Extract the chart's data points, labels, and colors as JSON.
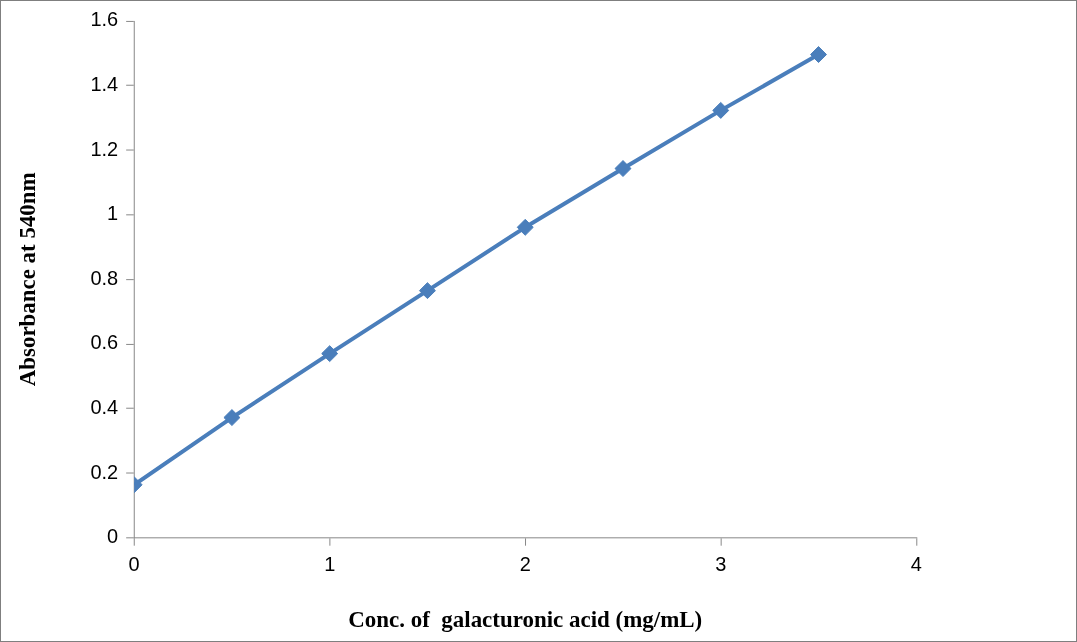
{
  "chart_data": {
    "type": "line",
    "xlabel": "Conc. of  galacturonic acid (mg/mL)",
    "ylabel": "Absorbance at 540nm",
    "x": [
      0,
      0.5,
      1,
      1.5,
      2,
      2.5,
      3,
      3.5
    ],
    "series": [
      {
        "color": "#4a7ebb",
        "values": [
          0.164,
          0.372,
          0.57,
          0.765,
          0.961,
          1.143,
          1.323,
          1.496
        ]
      }
    ],
    "xlim": [
      0,
      4
    ],
    "xticks": [
      0,
      1,
      2,
      3,
      4
    ],
    "ylim": [
      0,
      1.6
    ],
    "yticks": [
      0,
      0.2,
      0.4,
      0.6,
      0.8,
      1,
      1.2,
      1.4,
      1.6
    ],
    "grid": false,
    "legend": false,
    "marker": "diamond",
    "line_style": "solid"
  }
}
